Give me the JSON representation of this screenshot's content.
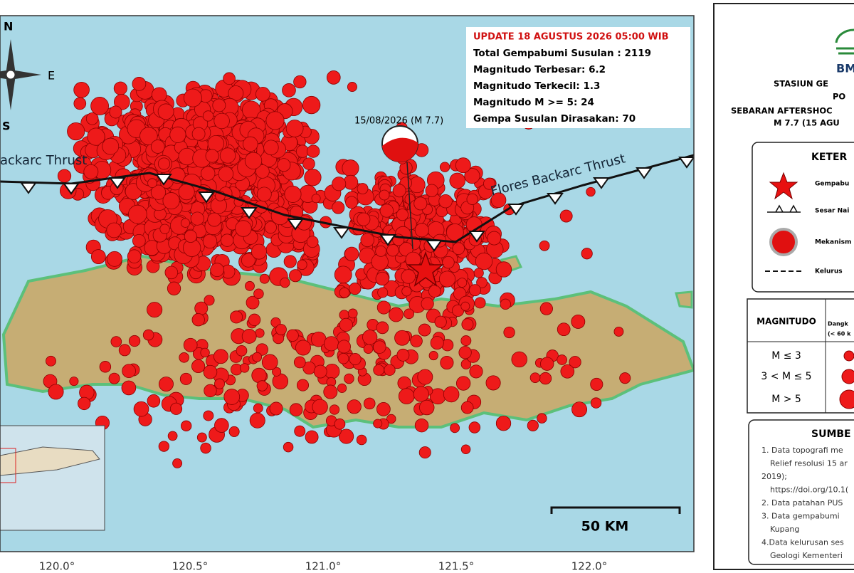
{
  "update_box": {
    "title": "UPDATE 18 AGUSTUS 2026 05:00 WIB",
    "lines": [
      "Total Gempabumi Susulan : 2119",
      "Magnitudo Terbesar: 6.2",
      "Magnitudo Terkecil: 1.3",
      "Magnitudo M >= 5: 24",
      "Gempa Susulan Dirasakan: 70"
    ]
  },
  "map": {
    "epicenter_label": "15/08/2026 (M 7.7)",
    "fault_east": "Flores Backarc Thrust",
    "fault_west": "ackarc Thrust",
    "compass": {
      "north": "N",
      "east": "E",
      "south": "S"
    },
    "scale_label": "50 KM",
    "longitudes": [
      "120.0°",
      "120.5°",
      "121.0°",
      "121.5°",
      "122.0°"
    ]
  },
  "legend": {
    "logo": "BM",
    "header": [
      "STASIUN GE",
      "PO",
      "SEBARAN AFTERSHOC",
      "M 7.7 (15 AGU"
    ],
    "keterangan_title": "KETER",
    "items": [
      "Gempabu",
      "Sesar Nai",
      "Mekanism",
      "Kelurus"
    ],
    "magnitude_table": {
      "header": "MAGNITUDO",
      "depth_header": [
        "Dangk",
        "(< 60 k"
      ],
      "rows": [
        "M ≤ 3",
        "3 < M ≤ 5",
        "M > 5"
      ]
    },
    "sources_title": "SUMBE",
    "sources": [
      "1. Data topografi me",
      "Relief resolusi 15 ar",
      "2019);",
      "https://doi.org/10.1(",
      "2. Data patahan PUS",
      "3. Data gempabumi",
      "Kupang",
      "4.Data kelurusan ses",
      "Geologi Kementeri"
    ]
  }
}
